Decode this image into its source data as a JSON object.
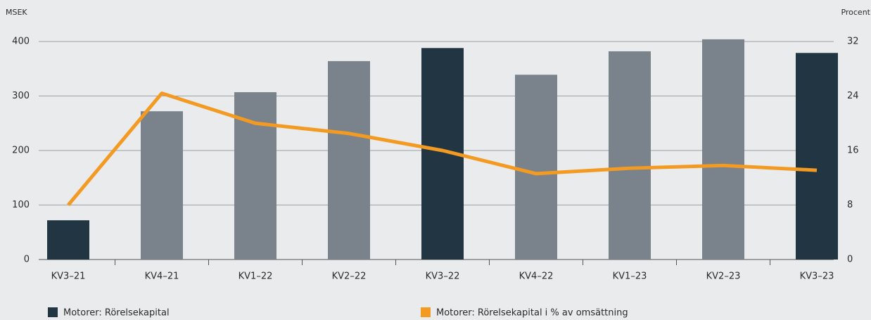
{
  "chart_data": {
    "type": "bar_line",
    "y_label": "MSEK",
    "y2_label": "Procent",
    "categories": [
      "KV3–21",
      "KV4–21",
      "KV1–22",
      "KV2–22",
      "KV3–22",
      "KV4–22",
      "KV1–23",
      "KV2–23",
      "KV3–23"
    ],
    "series": [
      {
        "name": "Motorer: Rörelsekapital",
        "type": "bar",
        "color": "#213642",
        "colors": [
          "#213642",
          "#7a828b",
          "#7a828b",
          "#7a828b",
          "#213642",
          "#7a828b",
          "#7a828b",
          "#7a828b",
          "#213642"
        ],
        "values": [
          72,
          272,
          307,
          364,
          388,
          339,
          382,
          404,
          379
        ]
      },
      {
        "name": "Motorer: Rörelsekapital i % av omsättning",
        "type": "line",
        "axis": "y2",
        "color": "#f39a22",
        "values": [
          8,
          24.4,
          20,
          18.5,
          16,
          12.6,
          13.4,
          13.8,
          13.1
        ]
      }
    ],
    "ylim": [
      0,
      400
    ],
    "yticks": [
      0,
      100,
      200,
      300,
      400
    ],
    "y2lim": [
      0,
      32
    ],
    "y2ticks": [
      0,
      8,
      16,
      24,
      32
    ],
    "grid": true,
    "legend": "bottom"
  }
}
